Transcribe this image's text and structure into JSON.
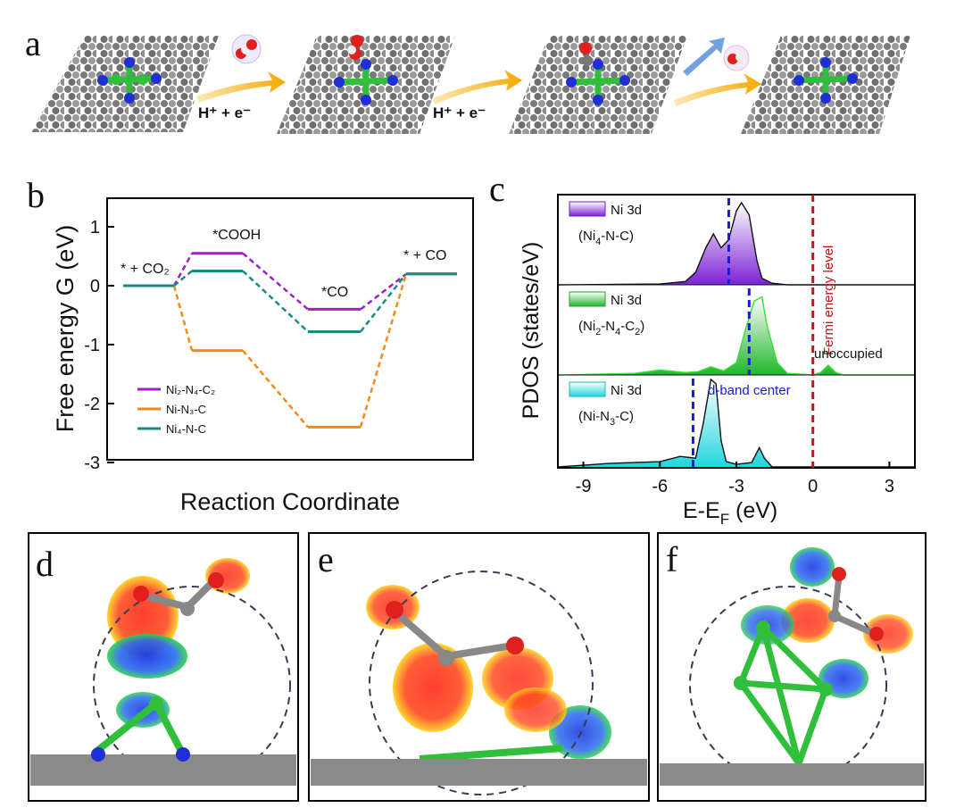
{
  "panel_labels": {
    "a": "a",
    "b": "b",
    "c": "c",
    "d": "d",
    "e": "e",
    "f": "f"
  },
  "panel_a": {
    "step1_label": "H⁺ + e⁻",
    "step2_label": "H⁺ + e⁻",
    "colors": {
      "carbon": "#8a8a8a",
      "nitrogen": "#1f2fd6",
      "nickel": "#2fbf3a",
      "oxygen": "#e0201c",
      "arrow": "#f5b523",
      "arrow_blue": "#5a8fd8"
    }
  },
  "chart_data": [
    {
      "type": "line",
      "panel": "b",
      "ylabel": "Free energy G (eV)",
      "xlabel": "Reaction Coordinate",
      "ylim": [
        -3,
        1.5
      ],
      "yticks": [
        "1",
        "0",
        "-1",
        "-2",
        "-3"
      ],
      "ytick_values": [
        1,
        0,
        -1,
        -2,
        -3
      ],
      "states": [
        "* + CO₂",
        "*COOH",
        "*CO",
        "* + CO"
      ],
      "series": [
        {
          "name": "Ni₂-N₄-C₂",
          "color": "#a020c8",
          "values": [
            0,
            0.55,
            -0.4,
            0.2
          ]
        },
        {
          "name": "Ni-N₃-C",
          "color": "#f08a1c",
          "values": [
            0,
            -1.1,
            -2.4,
            0.2
          ]
        },
        {
          "name": "Ni₄-N-C",
          "color": "#1a8a84",
          "values": [
            0,
            0.25,
            -0.78,
            0.2
          ]
        }
      ],
      "legend": "lower-left"
    },
    {
      "type": "area",
      "panel": "c",
      "ylabel": "PDOS (states/eV)",
      "xlabel": "E-E",
      "xlabel_sub": "F",
      "xlabel_unit": " (eV)",
      "xlim": [
        -10,
        4
      ],
      "xticks": [
        "-9",
        "-6",
        "-3",
        "0",
        "3"
      ],
      "xtick_values": [
        -9,
        -6,
        -3,
        0,
        3
      ],
      "fermi_label": "Fermi energy level",
      "dband_label": "d-band center",
      "unoccupied_label": "unoccupied",
      "series": [
        {
          "name": "Ni 3d",
          "system": "Ni₄-N-C",
          "color": "#8a2be2",
          "dband_center": -3.3,
          "x": [
            -10,
            -6,
            -5,
            -4.6,
            -4.2,
            -3.9,
            -3.6,
            -3.3,
            -3.0,
            -2.8,
            -2.5,
            -2.2,
            -2.0,
            -1.6,
            -1,
            4
          ],
          "y": [
            0,
            0.01,
            0.04,
            0.15,
            0.45,
            0.62,
            0.45,
            0.55,
            0.9,
            1.0,
            0.85,
            0.3,
            0.08,
            0.02,
            0,
            0
          ]
        },
        {
          "name": "Ni 3d",
          "system": "Ni₂-N₄-C₂",
          "color": "#2ecc40",
          "dband_center": -2.5,
          "x": [
            -10,
            -7,
            -6,
            -5,
            -4.5,
            -4,
            -3.5,
            -3,
            -2.6,
            -2.3,
            -2.0,
            -1.8,
            -1.4,
            -1,
            0,
            0.3,
            0.6,
            0.9,
            1.2,
            4
          ],
          "y": [
            0,
            0.02,
            0.06,
            0.03,
            0.04,
            0.1,
            0.05,
            0.15,
            0.6,
            0.9,
            0.95,
            0.6,
            0.15,
            0.02,
            0,
            0.03,
            0.12,
            0.03,
            0,
            0
          ]
        },
        {
          "name": "Ni 3d",
          "system": "Ni-N₃-C",
          "color": "#28d8dc",
          "dband_center": -4.7,
          "x": [
            -10,
            -8,
            -6,
            -5.2,
            -4.6,
            -4.3,
            -4.0,
            -3.8,
            -3.6,
            -3.4,
            -3.0,
            -2.4,
            -2.1,
            -1.9,
            -1.6,
            -1,
            4
          ],
          "y": [
            0,
            0.04,
            0.06,
            0.12,
            0.1,
            0.5,
            1.0,
            0.95,
            0.3,
            0.06,
            0.03,
            0.05,
            0.22,
            0.1,
            0,
            0,
            0
          ]
        }
      ],
      "fermi_x": 0
    }
  ],
  "panel_c_legends": [
    {
      "label": "Ni 3d",
      "system": "(Ni",
      "sub": "4",
      "rest": "-N-C)"
    },
    {
      "label": "Ni 3d",
      "system": "(Ni",
      "sub": "2",
      "mid": "-N",
      "sub2": "4",
      "mid2": "-C",
      "sub3": "2",
      "rest": ")"
    },
    {
      "label": "Ni 3d",
      "system": "(Ni-N",
      "sub": "3",
      "rest": "-C)"
    }
  ]
}
